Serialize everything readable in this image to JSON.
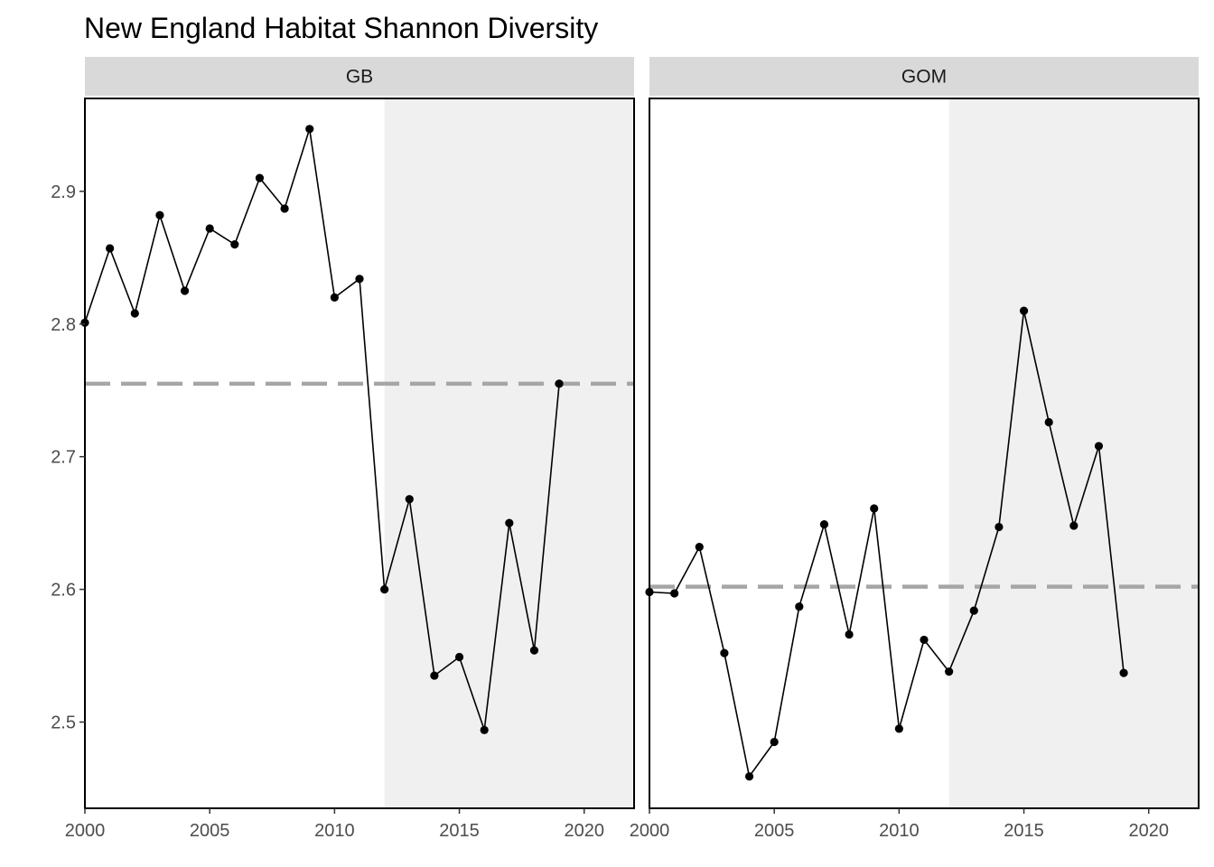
{
  "chart_data": {
    "type": "line",
    "title": "New England Habitat Shannon Diversity",
    "xlabel": "",
    "ylabel": "",
    "xlim": [
      2000,
      2022
    ],
    "ylim": [
      2.435,
      2.97
    ],
    "x_ticks": [
      2000,
      2005,
      2010,
      2015,
      2020
    ],
    "y_ticks": [
      2.5,
      2.6,
      2.7,
      2.8,
      2.9
    ],
    "shaded_region": [
      2012,
      2022
    ],
    "grid": false,
    "colors": {
      "line": "#000000",
      "point": "#000000",
      "shade": "#f0f0f0",
      "mean_line": "#a6a6a6",
      "strip": "#d9d9d9"
    },
    "panels": [
      {
        "name": "GB",
        "x": [
          2000,
          2001,
          2002,
          2003,
          2004,
          2005,
          2006,
          2007,
          2008,
          2009,
          2010,
          2011,
          2012,
          2013,
          2014,
          2015,
          2016,
          2017,
          2018,
          2019
        ],
        "values": [
          2.801,
          2.857,
          2.808,
          2.882,
          2.825,
          2.872,
          2.86,
          2.91,
          2.887,
          2.947,
          2.82,
          2.834,
          2.6,
          2.668,
          2.535,
          2.549,
          2.494,
          2.65,
          2.554,
          2.755
        ],
        "mean": 2.755
      },
      {
        "name": "GOM",
        "x": [
          2000,
          2001,
          2002,
          2003,
          2004,
          2005,
          2006,
          2007,
          2008,
          2009,
          2010,
          2011,
          2012,
          2013,
          2014,
          2015,
          2016,
          2017,
          2018,
          2019
        ],
        "values": [
          2.598,
          2.597,
          2.632,
          2.552,
          2.459,
          2.485,
          2.587,
          2.649,
          2.566,
          2.661,
          2.495,
          2.562,
          2.538,
          2.584,
          2.647,
          2.81,
          2.726,
          2.648,
          2.708,
          2.537
        ],
        "mean": 2.602
      }
    ]
  }
}
